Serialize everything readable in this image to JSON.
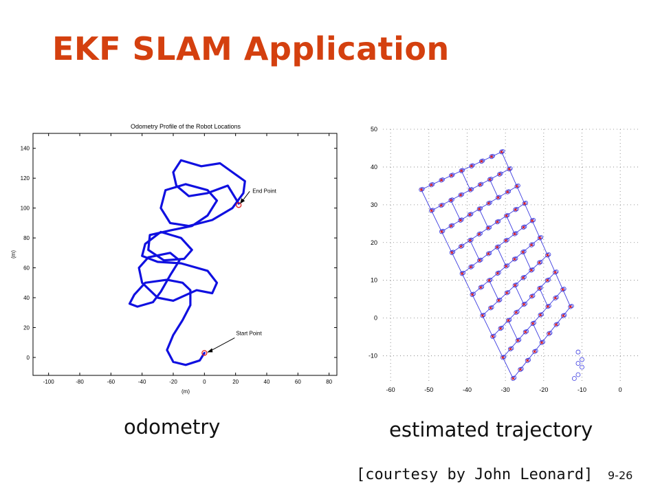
{
  "slide": {
    "title": "EKF SLAM Application",
    "caption_left": "odometry",
    "caption_right": "estimated trajectory",
    "courtesy": "[courtesy by John Leonard]",
    "page_number": "9-26"
  },
  "colors": {
    "title": "#d4400f",
    "trajectory": "#1010e0",
    "landmark_estimate": "#e02020",
    "map_lines": "#3a3ae0"
  },
  "chart_data": [
    {
      "type": "line",
      "title": "Odometry Profile of the Robot Locations",
      "xlabel": "(m)",
      "ylabel": "(m)",
      "xlim": [
        -110,
        85
      ],
      "ylim": [
        -12,
        150
      ],
      "xticks": [
        -100,
        -80,
        -60,
        -40,
        -20,
        0,
        20,
        40,
        60,
        80
      ],
      "yticks": [
        0,
        20,
        40,
        60,
        80,
        100,
        120,
        140
      ],
      "grid": false,
      "annotations": [
        {
          "text": "Start Point",
          "x": 0,
          "y": 3
        },
        {
          "text": "End Point",
          "x": 22,
          "y": 102
        }
      ],
      "x": [
        0,
        -3,
        -12,
        -20,
        -24,
        -20,
        -14,
        -9,
        -9,
        -14,
        -24,
        -38,
        -45,
        -48,
        -43,
        -33,
        -28,
        -22,
        -16,
        -22,
        -36,
        -42,
        -40,
        -30,
        -20,
        -5,
        5,
        8,
        2,
        -15,
        -30,
        -40,
        -38,
        -28,
        -15,
        -8,
        -13,
        -26,
        -36,
        -35,
        -22,
        -8,
        2,
        8,
        2,
        -12,
        -25,
        -28,
        -22,
        -10,
        5,
        18,
        25,
        26,
        18,
        10,
        -2,
        -15,
        -20,
        -18,
        -10,
        2,
        15,
        22
      ],
      "y": [
        3,
        -2,
        -5,
        -3,
        5,
        15,
        25,
        35,
        45,
        50,
        52,
        50,
        42,
        36,
        34,
        37,
        44,
        55,
        65,
        70,
        67,
        60,
        50,
        40,
        38,
        45,
        43,
        50,
        58,
        63,
        64,
        68,
        76,
        84,
        80,
        72,
        66,
        65,
        72,
        82,
        85,
        88,
        95,
        105,
        112,
        116,
        112,
        100,
        90,
        88,
        92,
        100,
        110,
        118,
        124,
        130,
        128,
        132,
        124,
        115,
        108,
        110,
        115,
        103
      ]
    },
    {
      "type": "scatter",
      "xlabel": "",
      "ylabel": "",
      "xlim": [
        -62,
        5
      ],
      "ylim": [
        -17,
        50
      ],
      "xticks": [
        -60,
        -50,
        -40,
        -30,
        -20,
        -10,
        0
      ],
      "yticks": [
        50,
        40,
        30,
        20,
        10,
        0,
        -10
      ],
      "grid": true,
      "trajectory_corners": [
        [
          -52,
          34
        ],
        [
          -31,
          44
        ],
        [
          -13,
          3
        ],
        [
          -28,
          -16
        ],
        [
          -52,
          34
        ]
      ],
      "landmarks_count_shown": 80,
      "origin_cluster": [
        [
          -11,
          -9
        ],
        [
          -10,
          -11
        ],
        [
          -11,
          -12
        ],
        [
          -10,
          -13
        ],
        [
          -11,
          -15
        ],
        [
          -12,
          -16
        ]
      ]
    }
  ]
}
